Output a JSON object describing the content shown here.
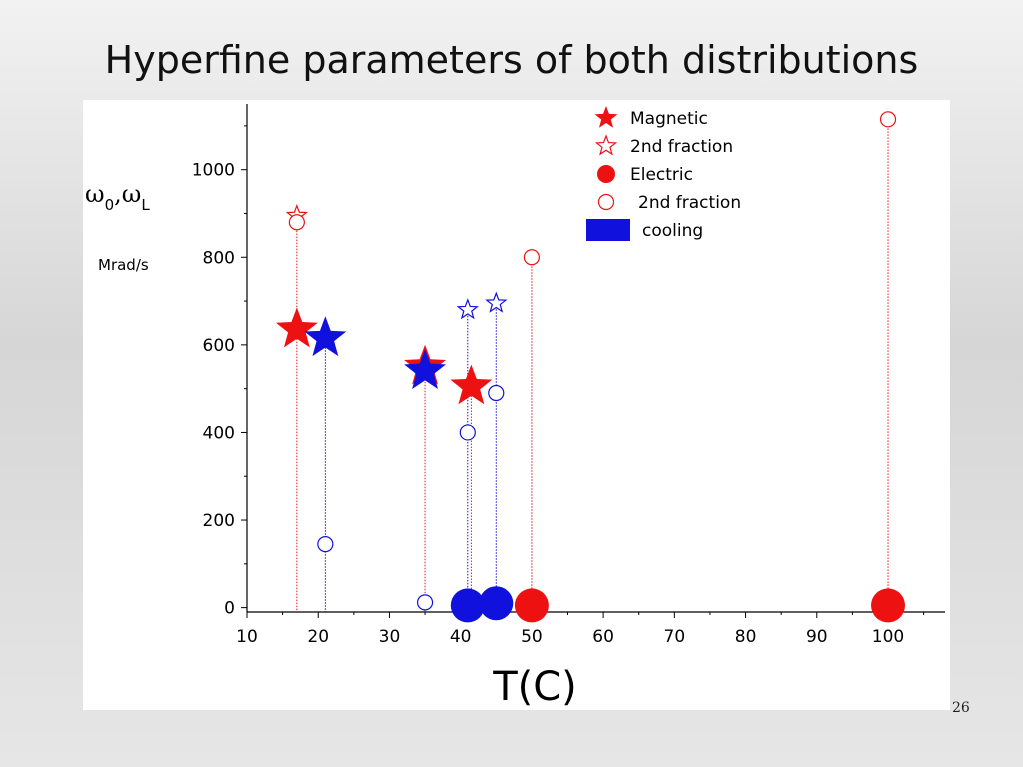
{
  "slide": {
    "title": "Hyperfine parameters of both distributions",
    "page_number": "26"
  },
  "colors": {
    "heating": "#ee1111",
    "cooling": "#1111dd"
  },
  "icons": {
    "magnetic": "filled-star",
    "second_fraction_magnetic": "open-star",
    "electric": "filled-circle",
    "second_fraction_electric": "open-circle",
    "cooling": "filled-rectangle"
  },
  "chart_data": {
    "type": "scatter",
    "xlabel": "T(C)",
    "ylabel_omega": "ω",
    "ylabel_sub0": "0",
    "ylabel_sep": ",",
    "ylabel_subL": "L",
    "ylabel_unit": "Mrad/s",
    "xlim": [
      10,
      108
    ],
    "ylim": [
      -10,
      1150
    ],
    "x_ticks": [
      10,
      20,
      30,
      40,
      50,
      60,
      70,
      80,
      90,
      100
    ],
    "y_ticks": [
      0,
      200,
      400,
      600,
      800,
      1000
    ],
    "grid": false,
    "legend_position": "top-center",
    "legend": [
      {
        "label": "Magnetic",
        "marker": "filled-star",
        "color": "heating"
      },
      {
        "label": "2nd fraction",
        "marker": "open-star",
        "color": "heating"
      },
      {
        "label": "Electric",
        "marker": "filled-circle",
        "color": "heating"
      },
      {
        "label": "2nd fraction",
        "marker": "open-circle",
        "color": "heating"
      },
      {
        "label": "cooling",
        "marker": "filled-rectangle",
        "color": "cooling"
      }
    ],
    "series": [
      {
        "marker": "filled-star",
        "color": "heating",
        "size": "large",
        "points": [
          {
            "x": 17,
            "y": 635
          },
          {
            "x": 35,
            "y": 550
          },
          {
            "x": 41.5,
            "y": 505
          }
        ]
      },
      {
        "marker": "filled-star",
        "color": "cooling",
        "size": "large",
        "points": [
          {
            "x": 21,
            "y": 615
          },
          {
            "x": 35,
            "y": 540
          }
        ]
      },
      {
        "marker": "open-star",
        "color": "heating",
        "size": "small",
        "points": [
          {
            "x": 17,
            "y": 895
          }
        ]
      },
      {
        "marker": "open-star",
        "color": "cooling",
        "size": "small",
        "points": [
          {
            "x": 41,
            "y": 680
          },
          {
            "x": 45,
            "y": 695
          }
        ]
      },
      {
        "marker": "filled-circle",
        "color": "heating",
        "size": "large",
        "points": [
          {
            "x": 50,
            "y": 5
          },
          {
            "x": 100,
            "y": 5
          }
        ]
      },
      {
        "marker": "filled-circle",
        "color": "cooling",
        "size": "large",
        "points": [
          {
            "x": 41,
            "y": 5
          },
          {
            "x": 45,
            "y": 10
          }
        ]
      },
      {
        "marker": "open-circle",
        "color": "heating",
        "size": "small",
        "points": [
          {
            "x": 17,
            "y": 880
          },
          {
            "x": 50,
            "y": 800
          },
          {
            "x": 100,
            "y": 1115
          }
        ]
      },
      {
        "marker": "open-circle",
        "color": "cooling",
        "size": "small",
        "points": [
          {
            "x": 21,
            "y": 145
          },
          {
            "x": 35,
            "y": 12
          },
          {
            "x": 41,
            "y": 400
          },
          {
            "x": 45,
            "y": 490
          }
        ]
      }
    ],
    "drop_lines": [
      {
        "x": 17,
        "y_top": 895,
        "color": "heating"
      },
      {
        "x": 21,
        "y_top": 615,
        "color": "cooling"
      },
      {
        "x": 35,
        "y_top": 550,
        "color": "heating"
      },
      {
        "x": 41,
        "y_top": 680,
        "color": "cooling"
      },
      {
        "x": 41.5,
        "y_top": 505,
        "color": "heating"
      },
      {
        "x": 45,
        "y_top": 695,
        "color": "cooling"
      },
      {
        "x": 50,
        "y_top": 800,
        "color": "heating"
      },
      {
        "x": 100,
        "y_top": 1115,
        "color": "heating"
      }
    ]
  }
}
